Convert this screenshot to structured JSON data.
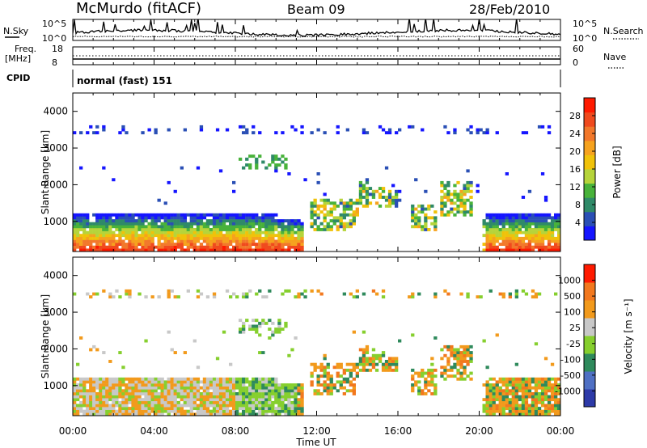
{
  "header": {
    "station": "McMurdo (fitACF)",
    "beam": "Beam 09",
    "date": "28/Feb/2010"
  },
  "strip_panels": {
    "noise": {
      "left_label": "N.Sky",
      "right_label": "N.Search",
      "left_ticks": [
        "10^5",
        "10^0"
      ],
      "right_ticks": [
        "10^5",
        "10^0"
      ]
    },
    "freq_nave": {
      "left_label_1": "Freq.",
      "left_label_2": "[MHz]",
      "right_label": "Nave",
      "left_ticks": [
        "18",
        "8"
      ],
      "right_ticks": [
        "60",
        "0"
      ]
    },
    "cpid": {
      "label": "CPID",
      "text": "normal (fast) 151"
    }
  },
  "chart_data": [
    {
      "type": "heatmap",
      "title": "",
      "ylabel": "Slant Range [km]",
      "xlabel": "",
      "ylim": [
        180,
        4500
      ],
      "yticks": [
        "1000",
        "2000",
        "3000",
        "4000"
      ],
      "colorbar": {
        "label": "Power [dB]",
        "ticks": [
          "4",
          "8",
          "12",
          "16",
          "20",
          "24",
          "28"
        ],
        "colors": [
          "#1515ff",
          "#2a4fb5",
          "#2f8a68",
          "#48b23a",
          "#b6d43a",
          "#f0c20a",
          "#f6a21e",
          "#f2782b",
          "#f04a1e",
          "#ff1a00"
        ]
      }
    },
    {
      "type": "heatmap",
      "title": "",
      "ylabel": "Slant Range [km]",
      "xlabel": "Time UT",
      "ylim": [
        180,
        4500
      ],
      "yticks": [
        "1000",
        "2000",
        "3000",
        "4000"
      ],
      "xticks": [
        "00:00",
        "04:00",
        "08:00",
        "12:00",
        "16:00",
        "20:00",
        "00:00"
      ],
      "colorbar": {
        "label": "Velocity [m s⁻¹]",
        "ticks": [
          "1000",
          "500",
          "100",
          "25",
          "-25",
          "-100",
          "-500",
          "-1000"
        ],
        "colors": [
          "#2d3aa8",
          "#4f70c4",
          "#2f8a5c",
          "#86cf2e",
          "#c8c8c8",
          "#f29a1c",
          "#f2781e",
          "#ff1a00"
        ]
      }
    }
  ]
}
